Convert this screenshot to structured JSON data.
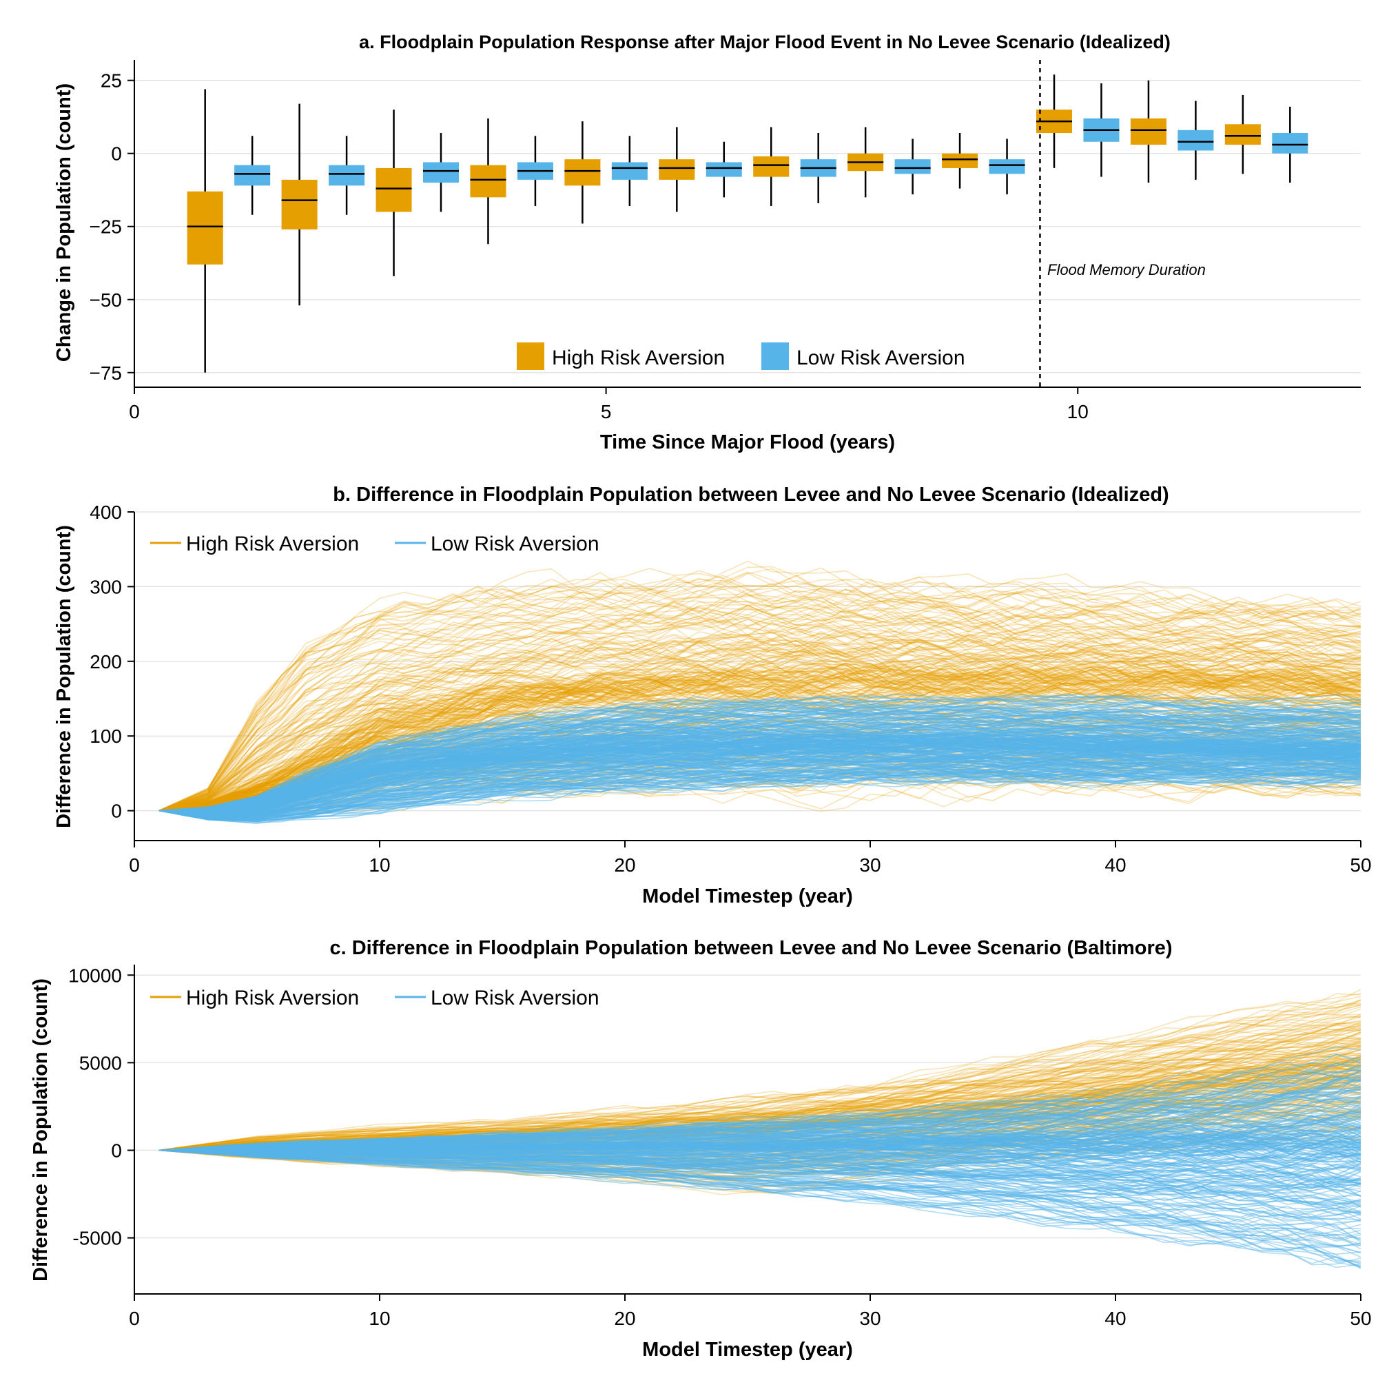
{
  "colors": {
    "high": "#E69F00",
    "low": "#56B4E9",
    "grid": "#e4e4e4"
  },
  "chart_data": [
    {
      "id": "a",
      "type": "box",
      "title": "a. Floodplain Population Response after Major Flood Event in No Levee Scenario (Idealized)",
      "xlabel": "Time Since Major Flood (years)",
      "ylabel": "Change in Population (count)",
      "xlim": [
        0,
        13
      ],
      "ylim": [
        -80,
        32
      ],
      "xticks": [
        0,
        5,
        10
      ],
      "xtick_labels": [
        "0",
        "5",
        "10"
      ],
      "yticks": [
        -75,
        -50,
        -25,
        0,
        25
      ],
      "ytick_labels": [
        "−75",
        "−50",
        "−25",
        "0",
        "25"
      ],
      "grid": true,
      "legend_position": "bottom-center",
      "legend": [
        "High Risk Aversion",
        "Low Risk Aversion"
      ],
      "vline_x": 9.6,
      "annotation": "Flood Memory Duration",
      "series": [
        {
          "name": "High Risk Aversion",
          "x": [
            1,
            2,
            3,
            4,
            5,
            6,
            7,
            8,
            9,
            10,
            11,
            12
          ],
          "min": [
            -75,
            -52,
            -42,
            -31,
            -24,
            -20,
            -18,
            -15,
            -12,
            -5,
            -10,
            -7
          ],
          "q1": [
            -38,
            -26,
            -20,
            -15,
            -11,
            -9,
            -8,
            -6,
            -5,
            7,
            3,
            3
          ],
          "median": [
            -25,
            -16,
            -12,
            -9,
            -6,
            -5,
            -4,
            -3,
            -2,
            11,
            8,
            6
          ],
          "q3": [
            -13,
            -9,
            -5,
            -4,
            -2,
            -2,
            -1,
            0,
            0,
            15,
            12,
            10
          ],
          "max": [
            22,
            17,
            15,
            12,
            11,
            9,
            9,
            9,
            7,
            27,
            25,
            20
          ]
        },
        {
          "name": "Low Risk Aversion",
          "x": [
            1,
            2,
            3,
            4,
            5,
            6,
            7,
            8,
            9,
            10,
            11,
            12
          ],
          "min": [
            -21,
            -21,
            -20,
            -18,
            -18,
            -15,
            -17,
            -14,
            -14,
            -8,
            -9,
            -10
          ],
          "q1": [
            -11,
            -11,
            -10,
            -9,
            -9,
            -8,
            -8,
            -7,
            -7,
            4,
            1,
            0
          ],
          "median": [
            -7,
            -7,
            -6,
            -6,
            -5,
            -5,
            -5,
            -5,
            -4,
            8,
            4,
            3
          ],
          "q3": [
            -4,
            -4,
            -3,
            -3,
            -3,
            -3,
            -2,
            -2,
            -2,
            12,
            8,
            7
          ],
          "max": [
            6,
            6,
            7,
            6,
            6,
            4,
            7,
            5,
            5,
            24,
            18,
            16
          ]
        }
      ]
    },
    {
      "id": "b",
      "type": "line",
      "title": "b. Difference in Floodplain Population between Levee and No Levee Scenario (Idealized)",
      "xlabel": "Model Timestep (year)",
      "ylabel": "Difference in Population (count)",
      "xlim": [
        0,
        50
      ],
      "ylim": [
        -40,
        400
      ],
      "xticks": [
        0,
        10,
        20,
        30,
        40,
        50
      ],
      "xtick_labels": [
        "0",
        "10",
        "20",
        "30",
        "40",
        "50"
      ],
      "yticks": [
        0,
        100,
        200,
        300,
        400
      ],
      "ytick_labels": [
        "0",
        "100",
        "200",
        "300",
        "400"
      ],
      "grid": true,
      "legend_position": "top-left",
      "legend": [
        "High Risk Aversion",
        "Low Risk Aversion"
      ],
      "series": [
        {
          "name": "High Risk Aversion",
          "x": [
            1,
            3,
            5,
            7,
            10,
            15,
            20,
            25,
            30,
            35,
            40,
            45,
            50
          ],
          "low": [
            0,
            -5,
            5,
            10,
            25,
            25,
            30,
            30,
            30,
            30,
            30,
            25,
            25
          ],
          "typical": [
            0,
            10,
            30,
            60,
            110,
            150,
            165,
            175,
            175,
            175,
            175,
            170,
            165
          ],
          "high": [
            0,
            30,
            150,
            230,
            280,
            300,
            310,
            320,
            315,
            300,
            290,
            285,
            275
          ]
        },
        {
          "name": "Low Risk Aversion",
          "x": [
            1,
            3,
            5,
            7,
            10,
            15,
            20,
            25,
            30,
            35,
            40,
            45,
            50
          ],
          "low": [
            0,
            -12,
            -15,
            -10,
            0,
            20,
            30,
            35,
            40,
            40,
            40,
            40,
            40
          ],
          "typical": [
            0,
            -5,
            5,
            25,
            55,
            75,
            85,
            88,
            90,
            90,
            88,
            85,
            82
          ],
          "high": [
            0,
            5,
            20,
            50,
            90,
            120,
            140,
            150,
            150,
            150,
            150,
            145,
            145
          ]
        }
      ]
    },
    {
      "id": "c",
      "type": "line",
      "title": "c. Difference in Floodplain Population between Levee and No Levee Scenario (Baltimore)",
      "xlabel": "Model Timestep (year)",
      "ylabel": "Difference in Population (count)",
      "xlim": [
        0,
        50
      ],
      "ylim": [
        -8200,
        10600
      ],
      "xticks": [
        0,
        10,
        20,
        30,
        40,
        50
      ],
      "xtick_labels": [
        "0",
        "10",
        "20",
        "30",
        "40",
        "50"
      ],
      "yticks": [
        -5000,
        0,
        5000,
        10000
      ],
      "ytick_labels": [
        "-5000",
        "0",
        "5000",
        "10000"
      ],
      "grid": true,
      "legend_position": "top-left",
      "legend": [
        "High Risk Aversion",
        "Low Risk Aversion"
      ],
      "series": [
        {
          "name": "High Risk Aversion",
          "x": [
            1,
            5,
            10,
            15,
            20,
            25,
            30,
            35,
            40,
            45,
            50
          ],
          "low": [
            0,
            -500,
            -900,
            -1300,
            -1800,
            -2400,
            -1800,
            -800,
            0,
            500,
            800
          ],
          "typical": [
            0,
            200,
            400,
            600,
            900,
            1200,
            1700,
            2400,
            3200,
            4200,
            5000
          ],
          "high": [
            0,
            800,
            1300,
            1700,
            2200,
            2800,
            3700,
            5000,
            6300,
            7700,
            9000
          ]
        },
        {
          "name": "Low Risk Aversion",
          "x": [
            1,
            5,
            10,
            15,
            20,
            25,
            30,
            35,
            40,
            45,
            50
          ],
          "low": [
            0,
            -400,
            -800,
            -1200,
            -1600,
            -2200,
            -2800,
            -3500,
            -4500,
            -5500,
            -6800
          ],
          "typical": [
            0,
            50,
            100,
            150,
            200,
            250,
            300,
            350,
            350,
            400,
            400
          ],
          "high": [
            0,
            400,
            700,
            1000,
            1300,
            1700,
            2100,
            2700,
            3300,
            4200,
            5500
          ]
        }
      ]
    }
  ]
}
